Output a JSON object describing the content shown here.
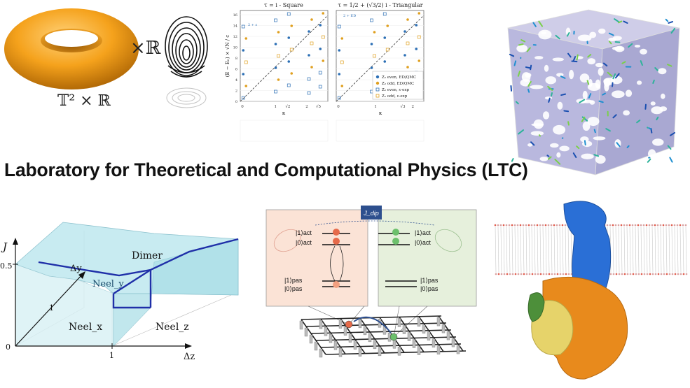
{
  "heading": "Laboratory for Theoretical and Computational Physics (LTC)",
  "torus_panel": {
    "label": "𝕋² × ℝ",
    "times_r": "×ℝ"
  },
  "spectrum_panel": {
    "left_title": "τ = i - Square",
    "right_title": "τ = 1/2 + (√3/2) i - Triangular",
    "y_label": "(E − E₀) × √N / c",
    "x_label": "κ",
    "left_x_ticks": [
      "0",
      "1",
      "√2",
      "2",
      "√5"
    ],
    "right_x_ticks": [
      "0",
      "1",
      "√3",
      "2"
    ],
    "y_ticks": [
      "0",
      "2",
      "4",
      "6",
      "8",
      "10",
      "12",
      "14",
      "16"
    ],
    "left_note": "2 + ε",
    "right_note": "2 + ED",
    "legend": [
      "Z₂ even, ED/QMC",
      "Z₂ odd, ED/QMC",
      "Z₂ even, ε-exp",
      "Z₂ odd, ε-exp"
    ],
    "colors": {
      "even": "#2c6fb5",
      "odd": "#e0a020"
    }
  },
  "phase_diagram": {
    "axis_j": "J",
    "axis_dz": "Δz",
    "axis_dy": "Δy",
    "tick_05": "0.5",
    "tick_1_vertical": "1",
    "tick_1_horizontal": "1",
    "origin": "0",
    "phase_dimer": "Dimer",
    "phase_neel_y": "Neel_y",
    "phase_neel_x": "Neel_x",
    "phase_neel_z": "Neel_z",
    "colors": {
      "surface": "#bfe8ef",
      "boundary": "#1f2fa8"
    }
  },
  "qubit_panel": {
    "coupling_label": "J_dip",
    "left_act_1": "|1⟩act",
    "left_act_0": "|0⟩act",
    "left_pas_1": "|1⟩pas",
    "left_pas_0": "|0⟩pas",
    "right_act_1": "|1⟩act",
    "right_act_0": "|0⟩act",
    "right_pas_1": "|1⟩pas",
    "right_pas_0": "|0⟩pas",
    "colors": {
      "left_box": "#fbe3d6",
      "right_box": "#e6f0dc",
      "label_bg": "#2d4f8e"
    }
  },
  "cube_panel": {
    "colors": {
      "surface": "#b9b8de"
    }
  },
  "membrane_panel": {
    "colors": {
      "blue": "#2a6fd6",
      "orange": "#e88a1c",
      "yellow": "#e6d36a",
      "green": "#4d8f3a"
    }
  }
}
